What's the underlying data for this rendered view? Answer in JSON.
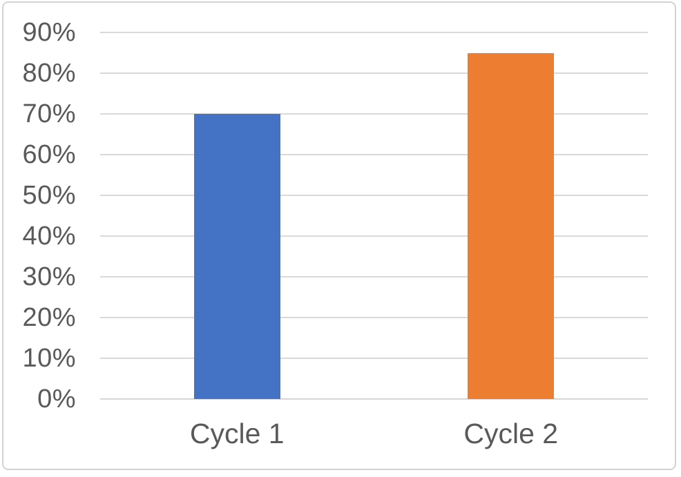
{
  "chart_data": {
    "type": "bar",
    "title": "",
    "xlabel": "",
    "ylabel": "",
    "categories": [
      "Cycle 1",
      "Cycle 2"
    ],
    "values": [
      70,
      85
    ],
    "value_unit": "%",
    "bar_colors": [
      "#4472C4",
      "#ED7D31"
    ],
    "ylim": [
      0,
      90
    ],
    "ytick_step": 10,
    "ytick_labels": [
      "0%",
      "10%",
      "20%",
      "30%",
      "40%",
      "50%",
      "60%",
      "70%",
      "80%",
      "90%"
    ],
    "grid": true,
    "legend_position": "none"
  },
  "colors": {
    "bar_cycle_1": "#4472C4",
    "bar_cycle_2": "#ED7D31",
    "gridline": "#D9D9D9",
    "axis_text": "#595959",
    "frame_border": "#D2D2D2",
    "background": "#FFFFFF"
  }
}
